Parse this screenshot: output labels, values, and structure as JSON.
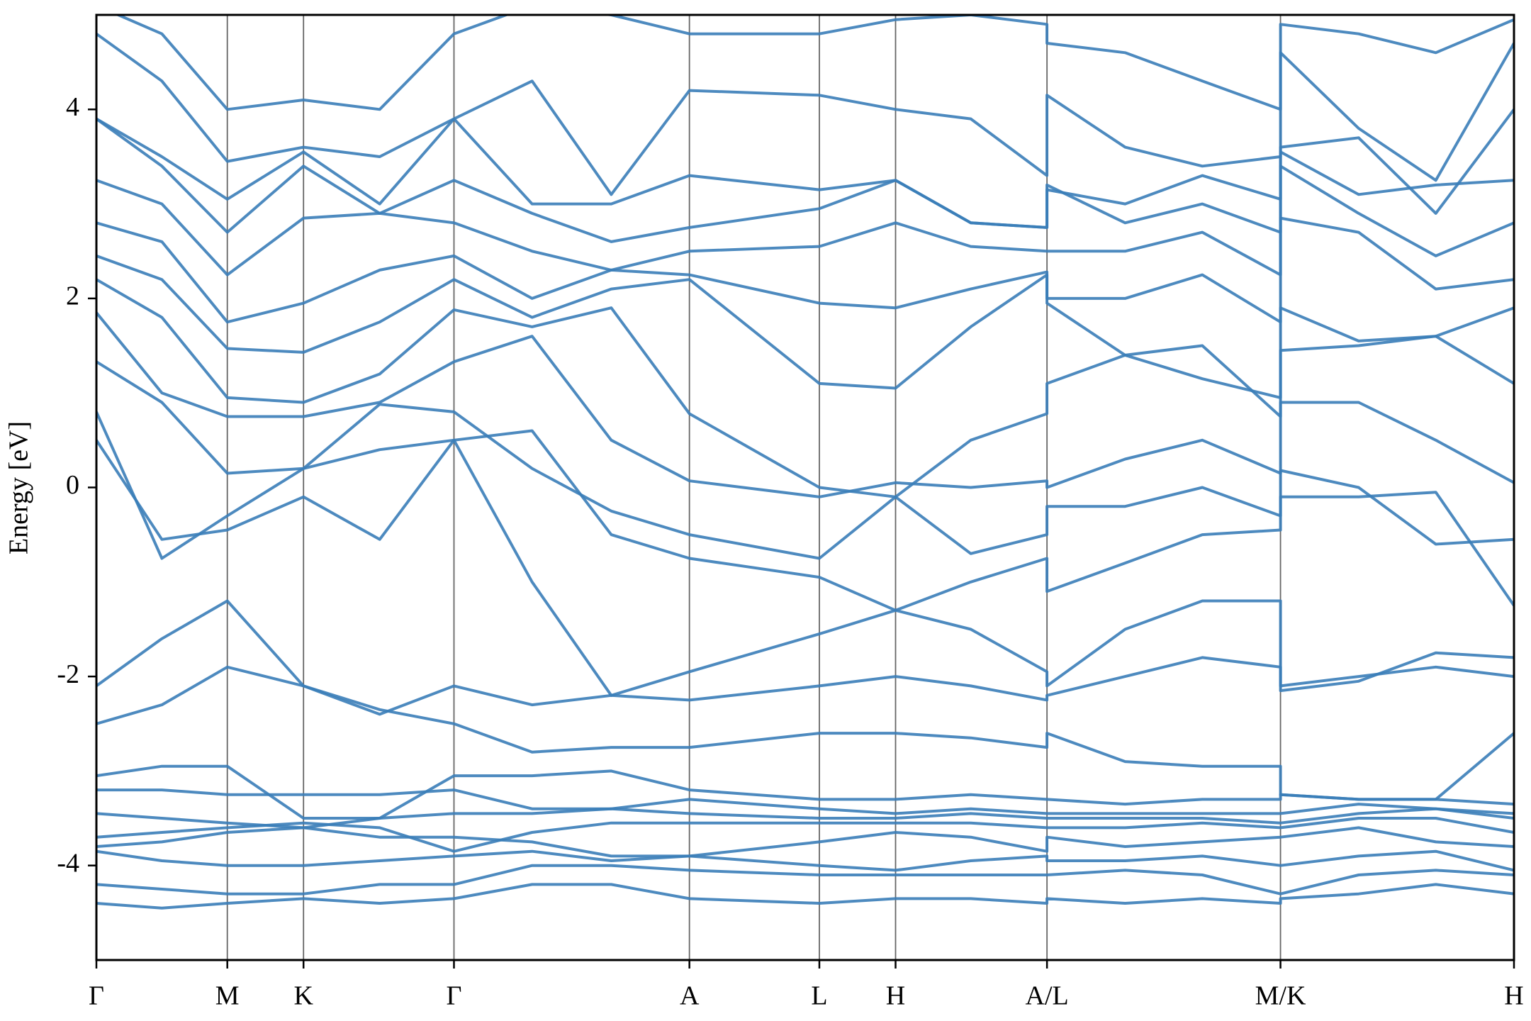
{
  "chart_data": {
    "type": "line",
    "ylabel": "Energy [eV]",
    "color": "#3a7db8",
    "grid": false,
    "xlim": [
      0,
      14.51
    ],
    "ylim": [
      -5,
      5
    ],
    "yticks": [
      -4,
      -2,
      0,
      2,
      4
    ],
    "xticks": [
      {
        "value": 0,
        "label": "Γ"
      },
      {
        "value": 1.34,
        "label": "M"
      },
      {
        "value": 2.12,
        "label": "K"
      },
      {
        "value": 3.66,
        "label": "Γ"
      },
      {
        "value": 6.07,
        "label": "A"
      },
      {
        "value": 7.4,
        "label": "L"
      },
      {
        "value": 8.18,
        "label": "H"
      },
      {
        "value": 9.73,
        "label": "A/L"
      },
      {
        "value": 12.12,
        "label": "M/K"
      },
      {
        "value": 14.51,
        "label": "H"
      }
    ],
    "x": [
      0,
      0.67,
      1.34,
      2.12,
      2.9,
      3.66,
      4.46,
      5.27,
      6.07,
      7.4,
      8.18,
      8.95,
      9.73,
      9.73,
      10.53,
      11.32,
      12.12,
      12.12,
      12.92,
      13.71,
      14.51
    ],
    "series": [
      {
        "values": [
          -4.4,
          -4.45,
          -4.4,
          -4.35,
          -4.4,
          -4.35,
          -4.2,
          -4.2,
          -4.35,
          -4.4,
          -4.35,
          -4.35,
          -4.4,
          -4.35,
          -4.4,
          -4.35,
          -4.4,
          -4.35,
          -4.3,
          -4.2,
          -4.3
        ]
      },
      {
        "values": [
          -4.2,
          -4.25,
          -4.3,
          -4.3,
          -4.2,
          -4.2,
          -4.0,
          -4.0,
          -4.05,
          -4.1,
          -4.1,
          -4.1,
          -4.1,
          -4.1,
          -4.05,
          -4.1,
          -4.3,
          -4.3,
          -4.1,
          -4.05,
          -4.1
        ]
      },
      {
        "values": [
          -3.85,
          -3.95,
          -4.0,
          -4.0,
          -3.95,
          -3.9,
          -3.85,
          -3.95,
          -3.9,
          -4.0,
          -4.05,
          -3.95,
          -3.9,
          -3.95,
          -3.95,
          -3.9,
          -4.0,
          -4.0,
          -3.9,
          -3.85,
          -4.05
        ]
      },
      {
        "values": [
          -3.8,
          -3.75,
          -3.65,
          -3.6,
          -3.7,
          -3.7,
          -3.75,
          -3.9,
          -3.9,
          -3.75,
          -3.65,
          -3.7,
          -3.85,
          -3.7,
          -3.8,
          -3.75,
          -3.7,
          -3.7,
          -3.6,
          -3.75,
          -3.8
        ]
      },
      {
        "values": [
          -3.7,
          -3.65,
          -3.6,
          -3.55,
          -3.6,
          -3.85,
          -3.65,
          -3.55,
          -3.55,
          -3.55,
          -3.55,
          -3.55,
          -3.6,
          -3.6,
          -3.6,
          -3.55,
          -3.6,
          -3.6,
          -3.5,
          -3.5,
          -3.65
        ]
      },
      {
        "values": [
          -3.45,
          -3.5,
          -3.55,
          -3.6,
          -3.5,
          -3.45,
          -3.45,
          -3.4,
          -3.45,
          -3.5,
          -3.5,
          -3.45,
          -3.5,
          -3.5,
          -3.5,
          -3.5,
          -3.55,
          -3.55,
          -3.45,
          -3.4,
          -3.5
        ]
      },
      {
        "values": [
          -3.2,
          -3.2,
          -3.25,
          -3.25,
          -3.25,
          -3.2,
          -3.4,
          -3.4,
          -3.3,
          -3.4,
          -3.45,
          -3.4,
          -3.45,
          -3.45,
          -3.45,
          -3.45,
          -3.45,
          -3.45,
          -3.35,
          -3.4,
          -3.45
        ]
      },
      {
        "values": [
          -3.05,
          -2.95,
          -2.95,
          -3.5,
          -3.5,
          -3.05,
          -3.05,
          -3.0,
          -3.2,
          -3.3,
          -3.3,
          -3.25,
          -3.3,
          -3.3,
          -3.35,
          -3.3,
          -3.3,
          -3.25,
          -3.3,
          -3.3,
          -3.35
        ]
      },
      {
        "values": [
          -2.5,
          -2.3,
          -1.9,
          -2.1,
          -2.35,
          -2.5,
          -2.8,
          -2.75,
          -2.75,
          -2.6,
          -2.6,
          -2.65,
          -2.75,
          -2.6,
          -2.9,
          -2.95,
          -2.95,
          -3.25,
          -3.3,
          -3.3,
          -2.6
        ]
      },
      {
        "values": [
          -2.1,
          -1.6,
          -1.2,
          -2.1,
          -2.4,
          -2.1,
          -2.3,
          -2.2,
          -2.25,
          -2.1,
          -2.0,
          -2.1,
          -2.25,
          -2.2,
          -2.0,
          -1.8,
          -1.9,
          -2.15,
          -2.05,
          -1.75,
          -1.8
        ]
      },
      {
        "values": [
          0.5,
          -0.55,
          -0.45,
          -0.1,
          -0.55,
          0.5,
          -1.0,
          -2.2,
          -1.95,
          -1.55,
          -1.3,
          -1.5,
          -1.95,
          -2.1,
          -1.5,
          -1.2,
          -1.2,
          -2.1,
          -2.0,
          -1.9,
          -2.0
        ]
      },
      {
        "values": [
          0.8,
          -0.75,
          -0.3,
          0.2,
          0.4,
          0.5,
          0.6,
          -0.5,
          -0.75,
          -0.95,
          -1.3,
          -1.0,
          -0.75,
          -1.1,
          -0.8,
          -0.5,
          -0.45,
          -0.1,
          -0.1,
          -0.05,
          -1.25
        ]
      },
      {
        "values": [
          1.33,
          0.9,
          0.15,
          0.2,
          0.88,
          0.8,
          0.2,
          -0.25,
          -0.5,
          -0.75,
          -0.1,
          -0.7,
          -0.5,
          -0.2,
          -0.2,
          0.0,
          -0.3,
          0.18,
          0.0,
          -0.6,
          -0.55
        ]
      },
      {
        "values": [
          1.85,
          1.0,
          0.75,
          0.75,
          0.9,
          1.33,
          1.6,
          0.5,
          0.07,
          -0.1,
          0.05,
          0.0,
          0.07,
          0.0,
          0.3,
          0.5,
          0.15,
          0.9,
          0.9,
          0.5,
          0.05
        ]
      },
      {
        "values": [
          2.2,
          1.8,
          0.95,
          0.9,
          1.2,
          1.88,
          1.7,
          1.9,
          0.78,
          0.0,
          -0.1,
          0.5,
          0.78,
          1.1,
          1.4,
          1.5,
          0.75,
          1.45,
          1.5,
          1.6,
          1.1
        ]
      },
      {
        "values": [
          2.45,
          2.2,
          1.47,
          1.43,
          1.75,
          2.2,
          1.8,
          2.1,
          2.2,
          1.1,
          1.05,
          1.7,
          2.25,
          1.95,
          1.4,
          1.15,
          0.95,
          1.9,
          1.55,
          1.6,
          1.9
        ]
      },
      {
        "values": [
          2.8,
          2.6,
          1.75,
          1.95,
          2.3,
          2.45,
          2.0,
          2.3,
          2.25,
          1.95,
          1.9,
          2.1,
          2.28,
          2.0,
          2.0,
          2.25,
          1.75,
          2.85,
          2.7,
          2.1,
          2.2
        ]
      },
      {
        "values": [
          3.25,
          3.0,
          2.25,
          2.85,
          2.9,
          2.8,
          2.5,
          2.3,
          2.5,
          2.55,
          2.8,
          2.55,
          2.5,
          2.5,
          2.5,
          2.7,
          2.25,
          3.4,
          2.9,
          2.45,
          2.8
        ]
      },
      {
        "values": [
          3.9,
          3.4,
          2.7,
          3.4,
          2.9,
          3.25,
          2.9,
          2.6,
          2.75,
          2.95,
          3.25,
          2.8,
          2.75,
          3.2,
          2.8,
          3.0,
          2.7,
          3.55,
          3.1,
          3.2,
          3.25
        ]
      },
      {
        "values": [
          3.9,
          3.5,
          3.05,
          3.55,
          3.0,
          3.9,
          3.0,
          3.0,
          3.3,
          3.15,
          3.25,
          2.8,
          2.75,
          3.15,
          3.0,
          3.3,
          3.05,
          3.6,
          3.7,
          2.9,
          4.0
        ]
      },
      {
        "values": [
          4.8,
          4.3,
          3.45,
          3.6,
          3.5,
          3.9,
          4.3,
          3.1,
          4.2,
          4.15,
          4.0,
          3.9,
          3.3,
          4.15,
          3.6,
          3.4,
          3.5,
          4.6,
          3.8,
          3.25,
          4.7
        ]
      },
      {
        "values": [
          5.1,
          4.8,
          4.0,
          4.1,
          4.0,
          4.8,
          5.1,
          5.0,
          4.8,
          4.8,
          4.95,
          5.0,
          4.9,
          4.7,
          4.6,
          4.3,
          4.0,
          4.9,
          4.8,
          4.6,
          4.95
        ]
      }
    ]
  }
}
